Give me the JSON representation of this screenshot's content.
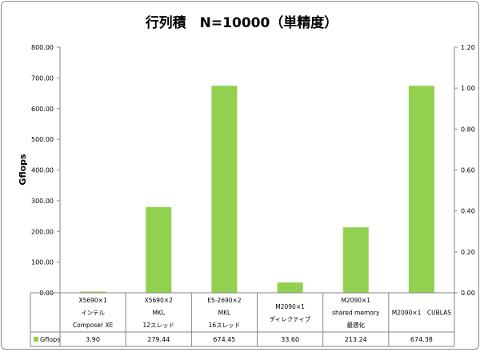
{
  "chart_data": {
    "type": "bar",
    "title": "行列積　N=10000（単精度）",
    "ylabel": "Gflops",
    "ylim": [
      0,
      800
    ],
    "y2lim": [
      0,
      1.2
    ],
    "yticks": [
      "0.00",
      "100.00",
      "200.00",
      "300.00",
      "400.00",
      "500.00",
      "600.00",
      "700.00",
      "800.00"
    ],
    "y2ticks": [
      "0.00",
      "0.20",
      "0.40",
      "0.60",
      "0.80",
      "1.00",
      "1.20"
    ],
    "grid": false,
    "legend": "table-bottom",
    "categories": [
      [
        "X5690×1",
        "インテル",
        "Composer XE"
      ],
      [
        "X5690×2",
        "MKL",
        "12スレッド"
      ],
      [
        "E5-2690×2",
        "MKL",
        "16スレッド"
      ],
      [
        "M2090×1",
        "ディレクティブ"
      ],
      [
        "M2090×1",
        "shared memory",
        "最適化"
      ],
      [
        "M2090×1　CUBLAS"
      ]
    ],
    "series": [
      {
        "name": "Gflops",
        "color": "#92d050",
        "values": [
          3.9,
          279.44,
          674.45,
          33.6,
          213.24,
          674.38
        ],
        "labels": [
          "3.90",
          "279.44",
          "674.45",
          "33.60",
          "213.24",
          "674.38"
        ]
      }
    ]
  }
}
